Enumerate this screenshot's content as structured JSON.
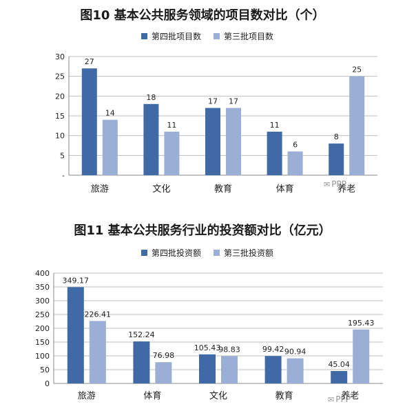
{
  "colors": {
    "series_a": "#3f6aa6",
    "series_b": "#9aaed6",
    "grid": "#bfbfbf",
    "axis": "#888888"
  },
  "watermark": {
    "text": "PPP",
    "icon": "wechat-icon"
  },
  "chart_data": [
    {
      "type": "bar",
      "title": "图10 基本公共服务领域的项目数对比（个）",
      "categories": [
        "旅游",
        "文化",
        "教育",
        "体育",
        "养老"
      ],
      "series": [
        {
          "name": "第四批项目数",
          "values": [
            27,
            18,
            17,
            11,
            8
          ]
        },
        {
          "name": "第三批项目数",
          "values": [
            14,
            11,
            17,
            6,
            25
          ]
        }
      ],
      "value_labels": [
        [
          "27",
          "18",
          "17",
          "11",
          "8"
        ],
        [
          "14",
          "11",
          "17",
          "6",
          "25"
        ]
      ],
      "ylim": [
        0,
        30
      ],
      "yticks": [
        0,
        5,
        10,
        15,
        20,
        25,
        30
      ],
      "ytick_labels": [
        "-",
        "5",
        "10",
        "15",
        "20",
        "25",
        "30"
      ],
      "legend_position": "top",
      "grid": true
    },
    {
      "type": "bar",
      "title": "图11 基本公共服务行业的投资额对比（亿元）",
      "categories": [
        "旅游",
        "体育",
        "文化",
        "教育",
        "养老"
      ],
      "series": [
        {
          "name": "第四批投资额",
          "values": [
            349.17,
            152.24,
            105.43,
            99.42,
            45.04
          ]
        },
        {
          "name": "第三批投资额",
          "values": [
            226.41,
            76.98,
            98.83,
            90.94,
            195.43
          ]
        }
      ],
      "value_labels": [
        [
          "349.17",
          "152.24",
          "105.43",
          "99.42",
          "45.04"
        ],
        [
          "226.41",
          "76.98",
          "98.83",
          "90.94",
          "195.43"
        ]
      ],
      "ylim": [
        0,
        400
      ],
      "yticks": [
        0,
        50,
        100,
        150,
        200,
        250,
        300,
        350,
        400
      ],
      "ytick_labels": [
        "0",
        "50",
        "100",
        "150",
        "200",
        "250",
        "300",
        "350",
        "400"
      ],
      "legend_position": "top",
      "grid": true
    }
  ]
}
